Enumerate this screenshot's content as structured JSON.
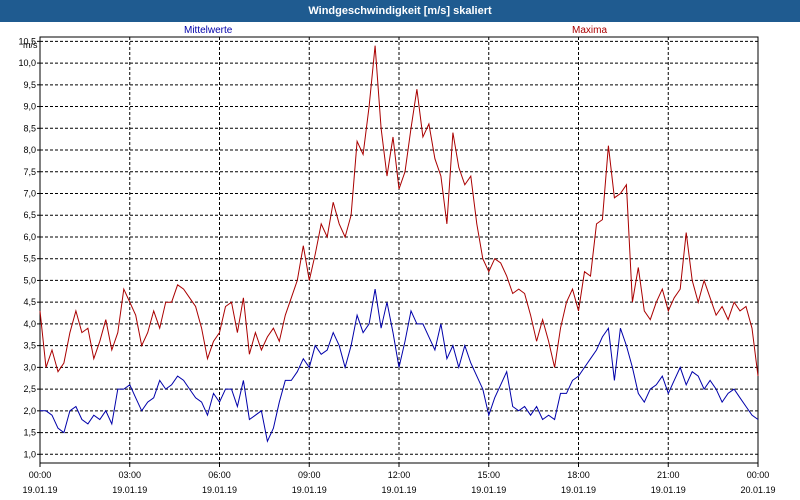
{
  "window": {
    "title": "Windgeschwindigkeit [m/s] skaliert"
  },
  "colors": {
    "titlebar": "#1f5b90",
    "mean": "#0000aa",
    "max": "#aa0000",
    "grid": "#000000"
  },
  "chart_data": {
    "type": "line",
    "title": "Windgeschwindigkeit [m/s] skaliert",
    "ylabel": "m/s",
    "ylim": [
      0.8,
      10.6
    ],
    "yticks": [
      "1,0",
      "1,5",
      "2,0",
      "2,5",
      "3,0",
      "3,5",
      "4,0",
      "4,5",
      "5,0",
      "5,5",
      "6,0",
      "6,5",
      "7,0",
      "7,5",
      "8,0",
      "8,5",
      "9,0",
      "9,5",
      "10,0",
      "10,5"
    ],
    "xlim_hours": [
      0,
      24
    ],
    "xticks": [
      {
        "time": "00:00",
        "date": "19.01.19"
      },
      {
        "time": "03:00",
        "date": "19.01.19"
      },
      {
        "time": "06:00",
        "date": "19.01.19"
      },
      {
        "time": "09:00",
        "date": "19.01.19"
      },
      {
        "time": "12:00",
        "date": "19.01.19"
      },
      {
        "time": "15:00",
        "date": "19.01.19"
      },
      {
        "time": "18:00",
        "date": "19.01.19"
      },
      {
        "time": "21:00",
        "date": "19.01.19"
      },
      {
        "time": "00:00",
        "date": "20.01.19"
      }
    ],
    "grid": true,
    "series": [
      {
        "name": "Mittelwerte",
        "color": "#0000aa",
        "points": [
          [
            0.0,
            2.0
          ],
          [
            0.2,
            2.0
          ],
          [
            0.4,
            1.9
          ],
          [
            0.6,
            1.6
          ],
          [
            0.8,
            1.5
          ],
          [
            1.0,
            2.0
          ],
          [
            1.2,
            2.1
          ],
          [
            1.4,
            1.8
          ],
          [
            1.6,
            1.7
          ],
          [
            1.8,
            1.9
          ],
          [
            2.0,
            1.8
          ],
          [
            2.2,
            2.0
          ],
          [
            2.4,
            1.7
          ],
          [
            2.6,
            2.5
          ],
          [
            2.8,
            2.5
          ],
          [
            3.0,
            2.6
          ],
          [
            3.2,
            2.3
          ],
          [
            3.4,
            2.0
          ],
          [
            3.6,
            2.2
          ],
          [
            3.8,
            2.3
          ],
          [
            4.0,
            2.7
          ],
          [
            4.2,
            2.5
          ],
          [
            4.4,
            2.6
          ],
          [
            4.6,
            2.8
          ],
          [
            4.8,
            2.7
          ],
          [
            5.0,
            2.5
          ],
          [
            5.2,
            2.3
          ],
          [
            5.4,
            2.2
          ],
          [
            5.6,
            1.9
          ],
          [
            5.8,
            2.4
          ],
          [
            6.0,
            2.2
          ],
          [
            6.2,
            2.5
          ],
          [
            6.4,
            2.5
          ],
          [
            6.6,
            2.1
          ],
          [
            6.8,
            2.7
          ],
          [
            7.0,
            1.8
          ],
          [
            7.2,
            1.9
          ],
          [
            7.4,
            2.0
          ],
          [
            7.6,
            1.3
          ],
          [
            7.8,
            1.6
          ],
          [
            8.0,
            2.2
          ],
          [
            8.2,
            2.7
          ],
          [
            8.4,
            2.7
          ],
          [
            8.6,
            2.9
          ],
          [
            8.8,
            3.2
          ],
          [
            9.0,
            3.0
          ],
          [
            9.2,
            3.5
          ],
          [
            9.4,
            3.3
          ],
          [
            9.6,
            3.4
          ],
          [
            9.8,
            3.8
          ],
          [
            10.0,
            3.5
          ],
          [
            10.2,
            3.0
          ],
          [
            10.4,
            3.5
          ],
          [
            10.6,
            4.2
          ],
          [
            10.8,
            3.8
          ],
          [
            11.0,
            4.0
          ],
          [
            11.2,
            4.8
          ],
          [
            11.4,
            3.9
          ],
          [
            11.6,
            4.5
          ],
          [
            11.8,
            3.8
          ],
          [
            12.0,
            3.0
          ],
          [
            12.2,
            3.6
          ],
          [
            12.4,
            4.3
          ],
          [
            12.6,
            4.0
          ],
          [
            12.8,
            4.0
          ],
          [
            13.0,
            3.7
          ],
          [
            13.2,
            3.4
          ],
          [
            13.4,
            4.0
          ],
          [
            13.6,
            3.2
          ],
          [
            13.8,
            3.5
          ],
          [
            14.0,
            3.0
          ],
          [
            14.2,
            3.5
          ],
          [
            14.4,
            3.1
          ],
          [
            14.6,
            2.8
          ],
          [
            14.8,
            2.5
          ],
          [
            15.0,
            1.9
          ],
          [
            15.2,
            2.3
          ],
          [
            15.4,
            2.6
          ],
          [
            15.6,
            2.9
          ],
          [
            15.8,
            2.1
          ],
          [
            16.0,
            2.0
          ],
          [
            16.2,
            2.1
          ],
          [
            16.4,
            1.9
          ],
          [
            16.6,
            2.1
          ],
          [
            16.8,
            1.8
          ],
          [
            17.0,
            1.9
          ],
          [
            17.2,
            1.8
          ],
          [
            17.4,
            2.4
          ],
          [
            17.6,
            2.4
          ],
          [
            17.8,
            2.7
          ],
          [
            18.0,
            2.8
          ],
          [
            18.2,
            3.0
          ],
          [
            18.4,
            3.2
          ],
          [
            18.6,
            3.4
          ],
          [
            18.8,
            3.7
          ],
          [
            19.0,
            3.9
          ],
          [
            19.2,
            2.7
          ],
          [
            19.4,
            3.9
          ],
          [
            19.6,
            3.5
          ],
          [
            19.8,
            3.0
          ],
          [
            20.0,
            2.4
          ],
          [
            20.2,
            2.2
          ],
          [
            20.4,
            2.5
          ],
          [
            20.6,
            2.6
          ],
          [
            20.8,
            2.8
          ],
          [
            21.0,
            2.4
          ],
          [
            21.2,
            2.7
          ],
          [
            21.4,
            3.0
          ],
          [
            21.6,
            2.6
          ],
          [
            21.8,
            2.9
          ],
          [
            22.0,
            2.8
          ],
          [
            22.2,
            2.5
          ],
          [
            22.4,
            2.7
          ],
          [
            22.6,
            2.5
          ],
          [
            22.8,
            2.2
          ],
          [
            23.0,
            2.4
          ],
          [
            23.2,
            2.5
          ],
          [
            23.4,
            2.3
          ],
          [
            23.6,
            2.1
          ],
          [
            23.8,
            1.9
          ],
          [
            24.0,
            1.8
          ]
        ]
      },
      {
        "name": "Maxima",
        "color": "#aa0000",
        "points": [
          [
            0.0,
            4.3
          ],
          [
            0.2,
            3.0
          ],
          [
            0.4,
            3.4
          ],
          [
            0.6,
            2.9
          ],
          [
            0.8,
            3.1
          ],
          [
            1.0,
            3.8
          ],
          [
            1.2,
            4.3
          ],
          [
            1.4,
            3.8
          ],
          [
            1.6,
            3.9
          ],
          [
            1.8,
            3.2
          ],
          [
            2.0,
            3.6
          ],
          [
            2.2,
            4.1
          ],
          [
            2.4,
            3.4
          ],
          [
            2.6,
            3.8
          ],
          [
            2.8,
            4.8
          ],
          [
            3.0,
            4.5
          ],
          [
            3.2,
            4.2
          ],
          [
            3.4,
            3.5
          ],
          [
            3.6,
            3.8
          ],
          [
            3.8,
            4.3
          ],
          [
            4.0,
            3.9
          ],
          [
            4.2,
            4.5
          ],
          [
            4.4,
            4.5
          ],
          [
            4.6,
            4.9
          ],
          [
            4.8,
            4.8
          ],
          [
            5.0,
            4.6
          ],
          [
            5.2,
            4.4
          ],
          [
            5.4,
            3.9
          ],
          [
            5.6,
            3.2
          ],
          [
            5.8,
            3.6
          ],
          [
            6.0,
            3.8
          ],
          [
            6.2,
            4.4
          ],
          [
            6.4,
            4.5
          ],
          [
            6.6,
            3.8
          ],
          [
            6.8,
            4.6
          ],
          [
            7.0,
            3.3
          ],
          [
            7.2,
            3.8
          ],
          [
            7.4,
            3.4
          ],
          [
            7.6,
            3.7
          ],
          [
            7.8,
            3.9
          ],
          [
            8.0,
            3.6
          ],
          [
            8.2,
            4.2
          ],
          [
            8.4,
            4.6
          ],
          [
            8.6,
            5.0
          ],
          [
            8.8,
            5.8
          ],
          [
            9.0,
            5.0
          ],
          [
            9.2,
            5.6
          ],
          [
            9.4,
            6.3
          ],
          [
            9.6,
            6.0
          ],
          [
            9.8,
            6.8
          ],
          [
            10.0,
            6.3
          ],
          [
            10.2,
            6.0
          ],
          [
            10.4,
            6.5
          ],
          [
            10.6,
            8.2
          ],
          [
            10.8,
            7.9
          ],
          [
            11.0,
            9.0
          ],
          [
            11.2,
            10.4
          ],
          [
            11.4,
            8.5
          ],
          [
            11.6,
            7.4
          ],
          [
            11.8,
            8.3
          ],
          [
            12.0,
            7.1
          ],
          [
            12.2,
            7.5
          ],
          [
            12.4,
            8.5
          ],
          [
            12.6,
            9.4
          ],
          [
            12.8,
            8.3
          ],
          [
            13.0,
            8.6
          ],
          [
            13.2,
            7.8
          ],
          [
            13.4,
            7.4
          ],
          [
            13.6,
            6.3
          ],
          [
            13.8,
            8.4
          ],
          [
            14.0,
            7.6
          ],
          [
            14.2,
            7.2
          ],
          [
            14.4,
            7.4
          ],
          [
            14.6,
            6.3
          ],
          [
            14.8,
            5.5
          ],
          [
            15.0,
            5.2
          ],
          [
            15.2,
            5.5
          ],
          [
            15.4,
            5.4
          ],
          [
            15.6,
            5.1
          ],
          [
            15.8,
            4.7
          ],
          [
            16.0,
            4.8
          ],
          [
            16.2,
            4.7
          ],
          [
            16.4,
            4.2
          ],
          [
            16.6,
            3.6
          ],
          [
            16.8,
            4.1
          ],
          [
            17.0,
            3.6
          ],
          [
            17.2,
            3.0
          ],
          [
            17.4,
            3.9
          ],
          [
            17.6,
            4.5
          ],
          [
            17.8,
            4.8
          ],
          [
            18.0,
            4.3
          ],
          [
            18.2,
            5.2
          ],
          [
            18.4,
            5.1
          ],
          [
            18.6,
            6.3
          ],
          [
            18.8,
            6.4
          ],
          [
            19.0,
            8.1
          ],
          [
            19.2,
            6.9
          ],
          [
            19.4,
            7.0
          ],
          [
            19.6,
            7.2
          ],
          [
            19.8,
            4.5
          ],
          [
            20.0,
            5.3
          ],
          [
            20.2,
            4.3
          ],
          [
            20.4,
            4.1
          ],
          [
            20.6,
            4.5
          ],
          [
            20.8,
            4.8
          ],
          [
            21.0,
            4.3
          ],
          [
            21.2,
            4.6
          ],
          [
            21.4,
            4.8
          ],
          [
            21.6,
            6.1
          ],
          [
            21.8,
            5.0
          ],
          [
            22.0,
            4.5
          ],
          [
            22.2,
            5.0
          ],
          [
            22.4,
            4.6
          ],
          [
            22.6,
            4.2
          ],
          [
            22.8,
            4.4
          ],
          [
            23.0,
            4.1
          ],
          [
            23.2,
            4.5
          ],
          [
            23.4,
            4.3
          ],
          [
            23.6,
            4.4
          ],
          [
            23.8,
            3.9
          ],
          [
            24.0,
            2.8
          ]
        ]
      }
    ]
  }
}
